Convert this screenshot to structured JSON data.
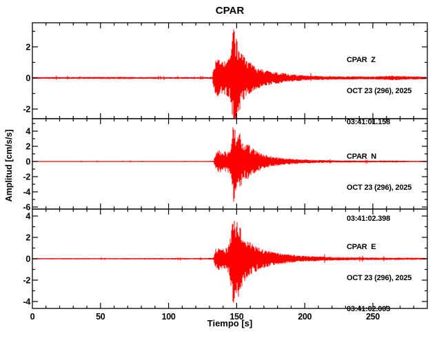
{
  "title": "CPAR",
  "xlabel": "Tiempo [s]",
  "ylabel": "Amplitud [cm/s/s]",
  "colors": {
    "trace": "#ff0000",
    "axis": "#000000",
    "background": "#ffffff"
  },
  "chart_data": {
    "type": "line",
    "description": "Three-component seismogram (vertical stack, shared time axis)",
    "station": "CPAR",
    "xlabel": "Tiempo [s]",
    "ylabel": "Amplitud [cm/s/s]",
    "xlim": [
      0,
      290
    ],
    "xticks": [
      0,
      50,
      100,
      150,
      200,
      250
    ],
    "x_minor_step": 10,
    "grid": false,
    "panels": [
      {
        "component": "Z",
        "label": "CPAR  Z",
        "date": "OCT 23 (296), 2025",
        "start_time": "03:41:01.158",
        "ylim": [
          -2.62,
          3.55
        ],
        "yticks": [
          -2,
          0,
          2
        ],
        "y_minor_step": 1,
        "p_arrival_s": 134,
        "s_arrival_s": 147,
        "peak_amplitude": 3.3,
        "envelope": [
          [
            0,
            0.06
          ],
          [
            30,
            0.06
          ],
          [
            60,
            0.07
          ],
          [
            100,
            0.06
          ],
          [
            125,
            0.06
          ],
          [
            132,
            0.07
          ],
          [
            134,
            1.1
          ],
          [
            136,
            1.3
          ],
          [
            139,
            1.05
          ],
          [
            142,
            1.15
          ],
          [
            145,
            1.3
          ],
          [
            146.5,
            2.2
          ],
          [
            147.5,
            3.3
          ],
          [
            148.5,
            3.1
          ],
          [
            150,
            2.7
          ],
          [
            152,
            2.2
          ],
          [
            154,
            1.6
          ],
          [
            157,
            1.2
          ],
          [
            160,
            1.0
          ],
          [
            164,
            0.75
          ],
          [
            168,
            0.6
          ],
          [
            172,
            0.5
          ],
          [
            176,
            0.42
          ],
          [
            180,
            0.36
          ],
          [
            185,
            0.3
          ],
          [
            190,
            0.25
          ],
          [
            195,
            0.2
          ],
          [
            200,
            0.17
          ],
          [
            210,
            0.13
          ],
          [
            220,
            0.11
          ],
          [
            235,
            0.1
          ],
          [
            250,
            0.1
          ],
          [
            258,
            0.13
          ],
          [
            265,
            0.15
          ],
          [
            272,
            0.13
          ],
          [
            280,
            0.1
          ],
          [
            290,
            0.08
          ]
        ]
      },
      {
        "component": "N",
        "label": "CPAR  N",
        "date": "OCT 23 (296), 2025",
        "start_time": "03:41:02.398",
        "ylim": [
          -6.27,
          5.64
        ],
        "yticks": [
          -6,
          -4,
          -2,
          0,
          2,
          4
        ],
        "y_minor_step": 1,
        "p_arrival_s": 135,
        "s_arrival_s": 148,
        "peak_amplitude": 5.9,
        "envelope": [
          [
            0,
            0.05
          ],
          [
            50,
            0.05
          ],
          [
            100,
            0.06
          ],
          [
            128,
            0.06
          ],
          [
            133,
            0.08
          ],
          [
            135,
            1.3
          ],
          [
            137,
            1.5
          ],
          [
            140,
            1.3
          ],
          [
            143,
            1.4
          ],
          [
            145,
            1.6
          ],
          [
            146.5,
            2.6
          ],
          [
            147.8,
            5.9
          ],
          [
            148.6,
            4.6
          ],
          [
            149.5,
            3.6
          ],
          [
            151,
            3.2
          ],
          [
            152.5,
            3.9
          ],
          [
            154,
            2.9
          ],
          [
            156,
            2.3
          ],
          [
            158,
            2.5
          ],
          [
            160,
            2.0
          ],
          [
            163,
            1.6
          ],
          [
            166,
            1.25
          ],
          [
            170,
            0.95
          ],
          [
            174,
            0.75
          ],
          [
            178,
            0.6
          ],
          [
            183,
            0.5
          ],
          [
            188,
            0.4
          ],
          [
            194,
            0.32
          ],
          [
            200,
            0.26
          ],
          [
            210,
            0.2
          ],
          [
            220,
            0.16
          ],
          [
            235,
            0.13
          ],
          [
            250,
            0.11
          ],
          [
            265,
            0.12
          ],
          [
            280,
            0.09
          ],
          [
            290,
            0.08
          ]
        ]
      },
      {
        "component": "E",
        "label": "CPAR  E",
        "date": "OCT 23 (296), 2025",
        "start_time": "03:41:02.003",
        "ylim": [
          -4.65,
          4.65
        ],
        "yticks": [
          -4,
          -2,
          0,
          2,
          4
        ],
        "y_minor_step": 1,
        "p_arrival_s": 134.5,
        "s_arrival_s": 147,
        "peak_amplitude": 4.5,
        "envelope": [
          [
            0,
            0.06
          ],
          [
            50,
            0.06
          ],
          [
            100,
            0.07
          ],
          [
            128,
            0.07
          ],
          [
            133,
            0.09
          ],
          [
            134.5,
            0.95
          ],
          [
            137,
            1.1
          ],
          [
            140,
            0.95
          ],
          [
            143,
            1.05
          ],
          [
            145,
            1.7
          ],
          [
            146.3,
            3.1
          ],
          [
            147.3,
            4.5
          ],
          [
            148.3,
            4.1
          ],
          [
            149.5,
            3.5
          ],
          [
            151,
            3.7
          ],
          [
            153,
            2.9
          ],
          [
            155,
            2.3
          ],
          [
            157.5,
            1.9
          ],
          [
            160,
            1.55
          ],
          [
            163,
            1.3
          ],
          [
            166,
            1.1
          ],
          [
            170,
            0.9
          ],
          [
            174,
            0.72
          ],
          [
            178,
            0.6
          ],
          [
            183,
            0.5
          ],
          [
            188,
            0.42
          ],
          [
            194,
            0.34
          ],
          [
            200,
            0.28
          ],
          [
            210,
            0.22
          ],
          [
            222,
            0.17
          ],
          [
            240,
            0.13
          ],
          [
            260,
            0.11
          ],
          [
            275,
            0.1
          ],
          [
            290,
            0.08
          ]
        ]
      }
    ]
  }
}
